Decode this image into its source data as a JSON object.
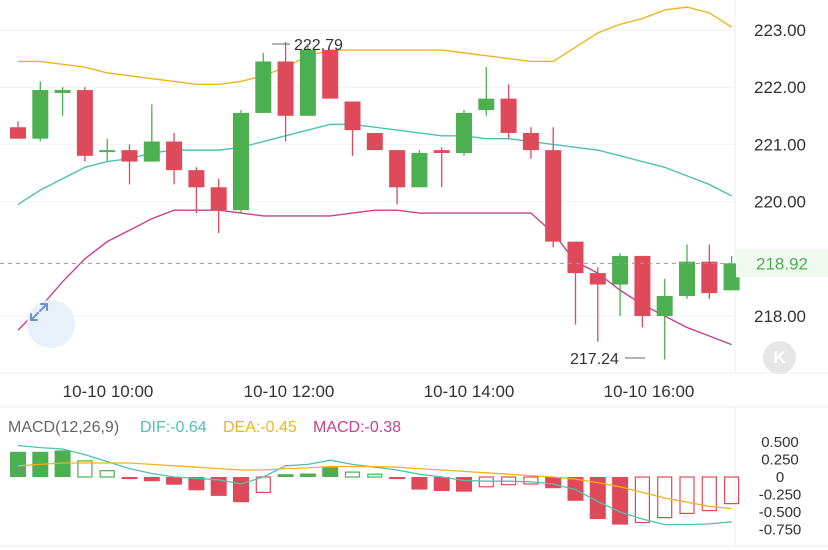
{
  "chart_data": [
    {
      "type": "candlestick",
      "ylim": [
        217.0,
        223.5
      ],
      "y_ticks": [
        "223.00",
        "222.00",
        "221.00",
        "220.00",
        "218.00"
      ],
      "y_tick_values": [
        223.0,
        222.0,
        221.0,
        220.0,
        218.0
      ],
      "x_ticks": [
        "10-10 10:00",
        "10-10 12:00",
        "10-10 14:00",
        "10-10 16:00"
      ],
      "last_price": 218.92,
      "last_price_label": "218.92",
      "high_label": "222.79",
      "low_label": "217.24",
      "candles": [
        {
          "o": 221.3,
          "h": 221.4,
          "l": 221.1,
          "c": 221.1
        },
        {
          "o": 221.1,
          "h": 222.1,
          "l": 221.05,
          "c": 221.95
        },
        {
          "o": 221.9,
          "h": 222.0,
          "l": 221.5,
          "c": 221.95
        },
        {
          "o": 221.95,
          "h": 222.0,
          "l": 220.7,
          "c": 220.8
        },
        {
          "o": 220.9,
          "h": 221.1,
          "l": 220.7,
          "c": 220.9
        },
        {
          "o": 220.9,
          "h": 221.0,
          "l": 220.3,
          "c": 220.7
        },
        {
          "o": 220.7,
          "h": 221.7,
          "l": 220.7,
          "c": 221.05
        },
        {
          "o": 221.05,
          "h": 221.2,
          "l": 220.3,
          "c": 220.55
        },
        {
          "o": 220.55,
          "h": 220.6,
          "l": 219.8,
          "c": 220.25
        },
        {
          "o": 220.25,
          "h": 220.4,
          "l": 219.45,
          "c": 219.85
        },
        {
          "o": 219.85,
          "h": 221.6,
          "l": 219.8,
          "c": 221.55
        },
        {
          "o": 221.55,
          "h": 222.6,
          "l": 221.55,
          "c": 222.45
        },
        {
          "o": 222.45,
          "h": 222.79,
          "l": 221.05,
          "c": 221.5
        },
        {
          "o": 221.5,
          "h": 222.75,
          "l": 221.5,
          "c": 222.65
        },
        {
          "o": 222.65,
          "h": 222.65,
          "l": 221.8,
          "c": 221.8
        },
        {
          "o": 221.75,
          "h": 221.75,
          "l": 220.8,
          "c": 221.25
        },
        {
          "o": 221.2,
          "h": 221.2,
          "l": 220.9,
          "c": 220.9
        },
        {
          "o": 220.9,
          "h": 220.9,
          "l": 219.95,
          "c": 220.25
        },
        {
          "o": 220.25,
          "h": 220.9,
          "l": 220.25,
          "c": 220.85
        },
        {
          "o": 220.9,
          "h": 220.95,
          "l": 220.25,
          "c": 220.85
        },
        {
          "o": 220.85,
          "h": 221.6,
          "l": 220.8,
          "c": 221.55
        },
        {
          "o": 221.6,
          "h": 222.35,
          "l": 221.5,
          "c": 221.8
        },
        {
          "o": 221.8,
          "h": 222.05,
          "l": 221.1,
          "c": 221.2
        },
        {
          "o": 221.2,
          "h": 221.3,
          "l": 220.75,
          "c": 220.9
        },
        {
          "o": 220.9,
          "h": 221.3,
          "l": 219.2,
          "c": 219.3
        },
        {
          "o": 219.3,
          "h": 219.3,
          "l": 217.85,
          "c": 218.75
        },
        {
          "o": 218.75,
          "h": 218.85,
          "l": 217.55,
          "c": 218.55
        },
        {
          "o": 218.55,
          "h": 219.1,
          "l": 218.0,
          "c": 219.05
        },
        {
          "o": 219.05,
          "h": 219.05,
          "l": 217.8,
          "c": 218.0
        },
        {
          "o": 218.0,
          "h": 218.65,
          "l": 217.24,
          "c": 218.35
        },
        {
          "o": 218.35,
          "h": 219.25,
          "l": 218.3,
          "c": 218.95
        },
        {
          "o": 218.95,
          "h": 219.25,
          "l": 218.3,
          "c": 218.4
        },
        {
          "o": 218.45,
          "h": 219.05,
          "l": 218.45,
          "c": 218.92
        }
      ],
      "lines": [
        {
          "color": "#f0b41e",
          "values": [
            222.45,
            222.45,
            222.4,
            222.35,
            222.25,
            222.2,
            222.15,
            222.1,
            222.05,
            222.05,
            222.1,
            222.2,
            222.35,
            222.55,
            222.65,
            222.65,
            222.65,
            222.65,
            222.65,
            222.65,
            222.6,
            222.55,
            222.5,
            222.45,
            222.45,
            222.7,
            222.95,
            223.1,
            223.2,
            223.35,
            223.4,
            223.3,
            223.05
          ]
        },
        {
          "color": "#4fc1b0",
          "values": [
            219.95,
            220.2,
            220.4,
            220.6,
            220.7,
            220.75,
            220.85,
            220.9,
            220.9,
            220.9,
            220.95,
            221.05,
            221.15,
            221.25,
            221.35,
            221.35,
            221.3,
            221.25,
            221.2,
            221.15,
            221.15,
            221.1,
            221.1,
            221.05,
            221.0,
            220.95,
            220.9,
            220.8,
            220.7,
            220.6,
            220.45,
            220.3,
            220.1
          ]
        },
        {
          "color": "#c8418c",
          "values": [
            217.75,
            218.15,
            218.6,
            219.0,
            219.3,
            219.5,
            219.7,
            219.85,
            219.85,
            219.85,
            219.8,
            219.75,
            219.75,
            219.75,
            219.75,
            219.8,
            219.85,
            219.85,
            219.8,
            219.8,
            219.8,
            219.8,
            219.8,
            219.8,
            219.45,
            218.95,
            218.75,
            218.45,
            218.2,
            218.0,
            217.8,
            217.65,
            217.5
          ]
        }
      ]
    },
    {
      "type": "bar",
      "title": "MACD(12,26,9)",
      "dif_label": "DIF:-0.64",
      "dea_label": "DEA:-0.45",
      "macd_label": "MACD:-0.38",
      "ylim": [
        -0.8,
        0.6
      ],
      "y_ticks": [
        "0.500",
        "0.250",
        "0",
        "-0.250",
        "-0.500",
        "-0.750"
      ],
      "y_tick_values": [
        0.5,
        0.25,
        0.0,
        -0.25,
        -0.5,
        -0.75
      ],
      "values": [
        0.36,
        0.36,
        0.38,
        0.23,
        0.09,
        -0.03,
        -0.06,
        -0.11,
        -0.19,
        -0.27,
        -0.36,
        -0.22,
        0.04,
        0.05,
        0.14,
        0.07,
        0.04,
        -0.03,
        -0.18,
        -0.2,
        -0.21,
        -0.14,
        -0.11,
        -0.1,
        -0.16,
        -0.34,
        -0.6,
        -0.68,
        -0.65,
        -0.58,
        -0.52,
        -0.48,
        -0.38
      ],
      "dif": [
        0.45,
        0.42,
        0.4,
        0.32,
        0.22,
        0.12,
        0.05,
        0.0,
        -0.02,
        -0.04,
        -0.1,
        0.0,
        0.16,
        0.18,
        0.24,
        0.18,
        0.14,
        0.1,
        0.04,
        0.0,
        -0.05,
        -0.06,
        -0.06,
        -0.07,
        -0.1,
        -0.18,
        -0.35,
        -0.5,
        -0.6,
        -0.68,
        -0.68,
        -0.67,
        -0.64
      ],
      "dea": [
        0.16,
        0.18,
        0.2,
        0.2,
        0.2,
        0.2,
        0.18,
        0.16,
        0.14,
        0.12,
        0.1,
        0.1,
        0.12,
        0.13,
        0.15,
        0.15,
        0.15,
        0.14,
        0.12,
        0.1,
        0.08,
        0.06,
        0.04,
        0.02,
        0.0,
        -0.03,
        -0.08,
        -0.14,
        -0.22,
        -0.3,
        -0.36,
        -0.42,
        -0.45
      ],
      "dif_color": "#4fc1b0",
      "dea_color": "#f0b41e",
      "macd_color": "#c8418c"
    }
  ],
  "colors": {
    "up": "#4caf50",
    "down": "#de4a5a",
    "last_price": "#4caf50",
    "text": "#333333",
    "grid": "#eeeeee"
  },
  "icons": {
    "expand": "expand-icon",
    "k": "k-line-icon"
  },
  "k_label": "K"
}
